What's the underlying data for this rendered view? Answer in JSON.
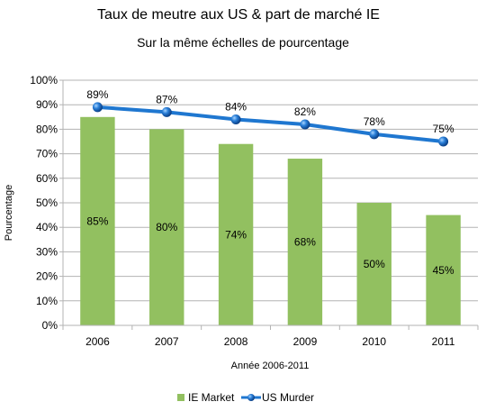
{
  "chart_data": {
    "type": "bar",
    "title": "Taux de meutre aux US & part de marché IE",
    "subtitle": "Sur la même échelles de pourcentage",
    "xlabel": "Année 2006-2011",
    "ylabel": "Pourcentage",
    "categories": [
      "2006",
      "2007",
      "2008",
      "2009",
      "2010",
      "2011"
    ],
    "ylim": [
      0,
      100
    ],
    "yticks": [
      "0%",
      "10%",
      "20%",
      "30%",
      "40%",
      "50%",
      "60%",
      "70%",
      "80%",
      "90%",
      "100%"
    ],
    "grid": true,
    "legend_position": "bottom",
    "series": [
      {
        "name": "IE Market",
        "type": "bar",
        "color": "#92c060",
        "values": [
          85,
          80,
          74,
          68,
          50,
          45
        ],
        "labels": [
          "85%",
          "80%",
          "74%",
          "68%",
          "50%",
          "45%"
        ]
      },
      {
        "name": "US Murder",
        "type": "line",
        "color": "#1f77d0",
        "values": [
          89,
          87,
          84,
          82,
          78,
          75
        ],
        "labels": [
          "89%",
          "87%",
          "84%",
          "82%",
          "78%",
          "75%"
        ]
      }
    ]
  }
}
